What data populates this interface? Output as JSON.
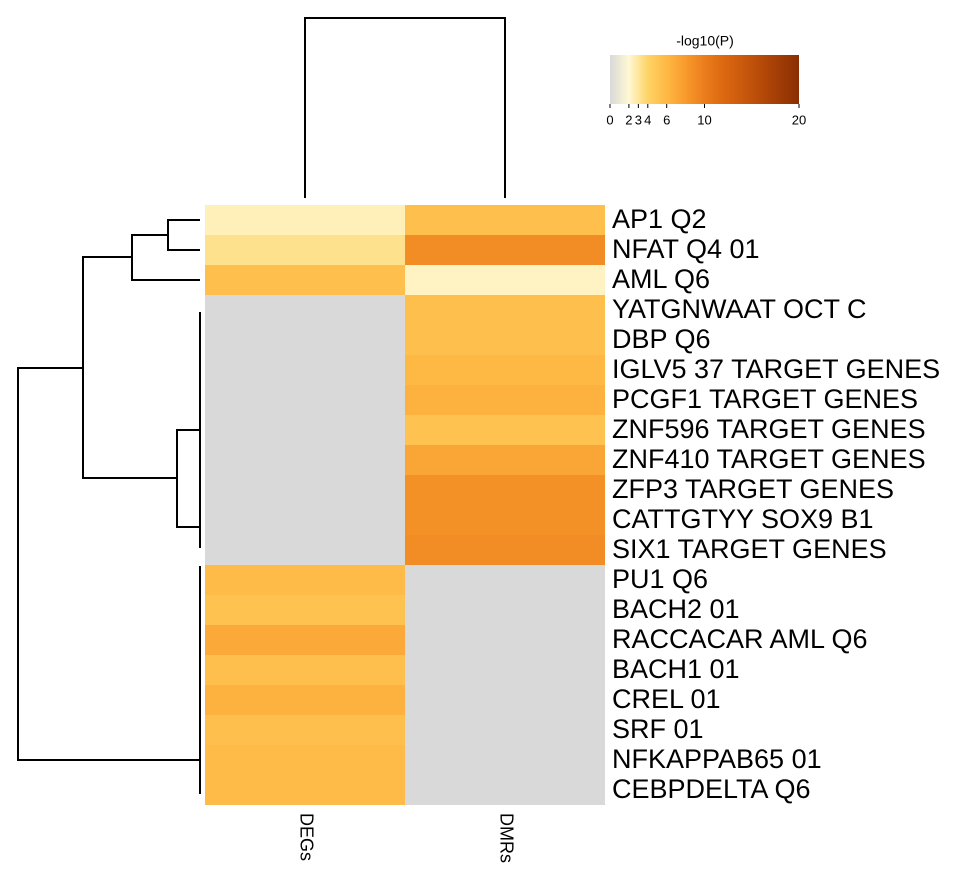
{
  "chart_data": {
    "type": "heatmap",
    "title": "-log10(P)",
    "categories": [
      "AP1 Q2",
      "NFAT Q4 01",
      "AML Q6",
      "YATGNWAAT OCT C",
      "DBP Q6",
      "IGLV5 37 TARGET GENES",
      "PCGF1 TARGET GENES",
      "ZNF596 TARGET GENES",
      "ZNF410 TARGET GENES",
      "ZFP3 TARGET GENES",
      "CATTGTYY SOX9 B1",
      "SIX1 TARGET GENES",
      "PU1 Q6",
      "BACH2 01",
      "RACCACAR AML Q6",
      "BACH1 01",
      "CREL 01",
      "SRF 01",
      "NFKAPPAB65 01",
      "CEBPDELTA Q6"
    ],
    "series": [
      {
        "name": "DEGs",
        "values": [
          2.5,
          3.3,
          5.5,
          0,
          0,
          0,
          0,
          0,
          0,
          0,
          0,
          0,
          5.8,
          5.3,
          7,
          5.5,
          6.5,
          5.5,
          5.8,
          5.8
        ]
      },
      {
        "name": "DMRs",
        "values": [
          5.5,
          9,
          2.3,
          5.5,
          5.5,
          6,
          6.5,
          5.3,
          7.2,
          8.7,
          8.7,
          9,
          0,
          0,
          0,
          0,
          0,
          0,
          0,
          0
        ]
      }
    ],
    "zlim": [
      0,
      20
    ],
    "zticks": [
      0,
      2,
      3,
      4,
      6,
      10,
      20
    ],
    "colors": [
      "#d9d9d9",
      "#fff8d4",
      "#fed466",
      "#feb844",
      "#f89a2c",
      "#eb7d1c",
      "#dc6810",
      "#c9590c",
      "#b64a08",
      "#a03c05",
      "#8a2e03"
    ]
  }
}
